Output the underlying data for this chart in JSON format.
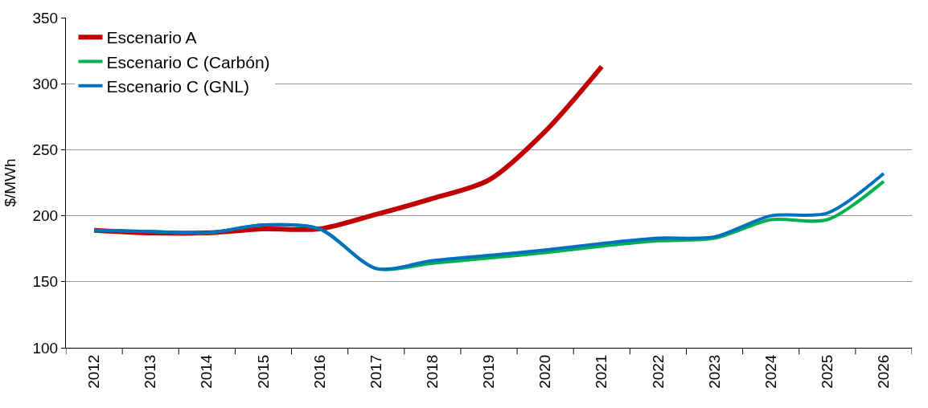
{
  "chart_data": {
    "type": "line",
    "ylabel": "$/MWh",
    "categories": [
      "2012",
      "2013",
      "2014",
      "2015",
      "2016",
      "2017",
      "2018",
      "2019",
      "2020",
      "2021",
      "2022",
      "2023",
      "2024",
      "2025",
      "2026"
    ],
    "series": [
      {
        "name": "Escenario A",
        "color": "#c00000",
        "values": [
          189,
          187,
          187,
          190,
          190,
          201,
          213,
          227,
          264,
          313,
          null,
          null,
          null,
          null,
          null
        ]
      },
      {
        "name": "Escenario C (Carbón)",
        "color": "#00b050",
        "values": [
          189,
          188,
          187,
          193,
          190,
          160,
          164,
          168,
          172,
          177,
          181,
          183,
          197,
          197,
          226
        ]
      },
      {
        "name": "Escenario C (GNL)",
        "color": "#0070c0",
        "values": [
          189,
          188,
          187,
          193,
          190,
          160,
          166,
          170,
          174,
          179,
          183,
          184,
          200,
          202,
          232
        ]
      }
    ],
    "ylim": [
      100,
      350
    ],
    "yticks": [
      100,
      150,
      200,
      250,
      300,
      350
    ],
    "grid": "y",
    "legend": "top left",
    "marker": "none",
    "line_style": "solid"
  }
}
